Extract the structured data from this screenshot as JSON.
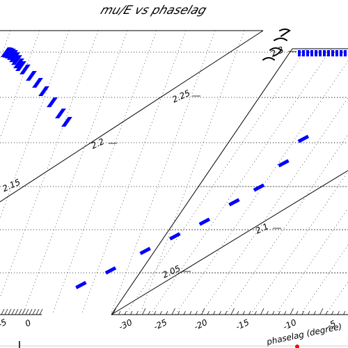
{
  "chart_data": {
    "type": "scatter",
    "title": "mu/E vs phaselag",
    "xlabel": "phaselag (degree)",
    "ylabel": "",
    "left_panel": {
      "x_tick_labels": [
        "-5",
        "0"
      ],
      "y_tick_labels": [
        "2.15"
      ],
      "series": [
        {
          "values": [
            [
              0.0,
              2.29
            ],
            [
              0.02,
              2.288
            ],
            [
              0.04,
              2.285
            ],
            [
              0.06,
              2.28
            ],
            [
              0.08,
              2.272
            ],
            [
              0.1,
              2.262
            ],
            [
              0.12,
              2.25
            ],
            [
              0.14,
              2.24
            ],
            [
              0.18,
              2.228
            ],
            [
              0.24,
              2.205
            ],
            [
              0.3,
              2.18
            ],
            [
              0.36,
              2.15
            ],
            [
              0.44,
              2.11
            ],
            [
              0.52,
              2.07
            ],
            [
              0.58,
              2.04
            ]
          ]
        }
      ]
    },
    "right_panel": {
      "x_tick_labels": [
        "-30",
        "-25",
        "-20",
        "-15",
        "-10",
        "-5"
      ],
      "y_tick_labels": [
        "2.3",
        "2.25",
        "2.2",
        "2.1",
        "2.05"
      ],
      "series": [
        {
          "values": [
            [
              -3.5,
              2.3
            ],
            [
              -4.5,
              2.25
            ],
            [
              -6.5,
              2.2
            ],
            [
              -9.0,
              2.15
            ],
            [
              -11.5,
              2.12
            ],
            [
              -14.5,
              2.08
            ],
            [
              -17.5,
              2.05
            ],
            [
              -20.5,
              2.02
            ],
            [
              -24.0,
              1.98
            ],
            [
              -27.0,
              1.95
            ]
          ]
        }
      ]
    },
    "series_color": "#0000ff",
    "grid": true
  }
}
